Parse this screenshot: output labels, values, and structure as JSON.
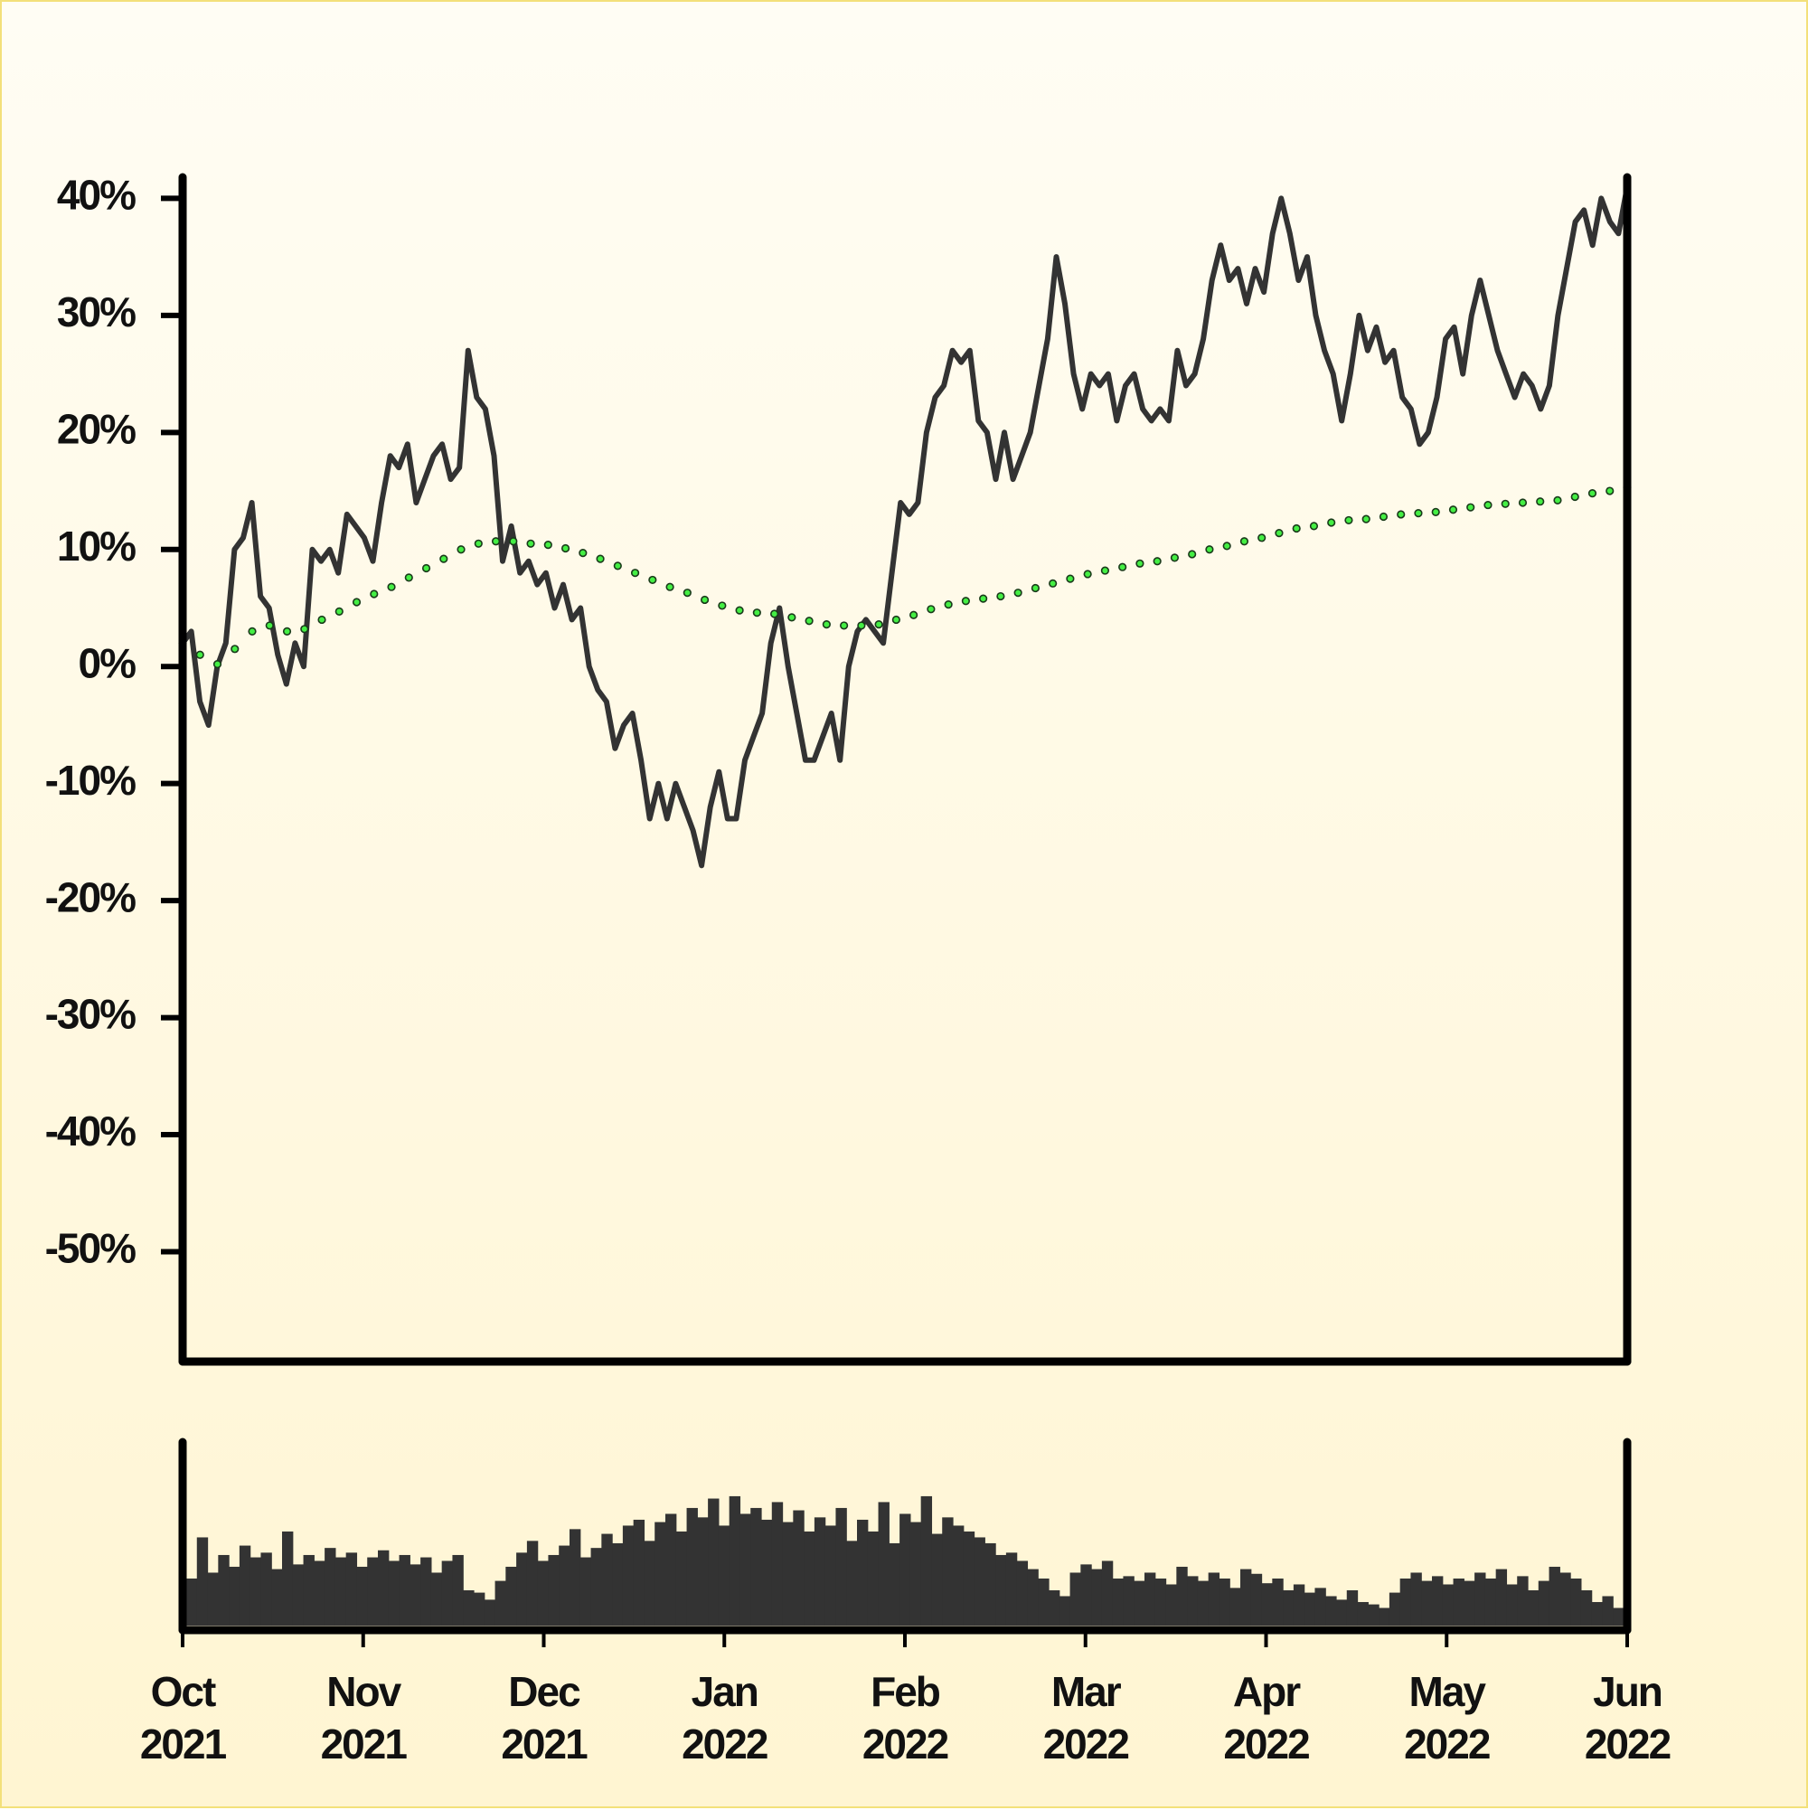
{
  "chart_data": [
    {
      "type": "line",
      "xlim": [
        0,
        8
      ],
      "ylim": [
        -59,
        41.5
      ],
      "yticks": [
        {
          "value": 40,
          "label": "40%"
        },
        {
          "value": 30,
          "label": "30%"
        },
        {
          "value": 20,
          "label": "20%"
        },
        {
          "value": 10,
          "label": "10%"
        },
        {
          "value": 0,
          "label": "0%"
        },
        {
          "value": -10,
          "label": "-10%"
        },
        {
          "value": -20,
          "label": "-20%"
        },
        {
          "value": -30,
          "label": "-30%"
        },
        {
          "value": -40,
          "label": "-40%"
        },
        {
          "value": -50,
          "label": "-50%"
        }
      ],
      "series": [
        {
          "color": "#333333",
          "style": "line",
          "values": [
            2,
            3,
            -3,
            -5,
            0,
            2,
            10,
            11,
            14,
            6,
            5,
            1,
            -1.5,
            2,
            0,
            10,
            9,
            10,
            8,
            13,
            12,
            11,
            9,
            14,
            18,
            17,
            19,
            14,
            16,
            18,
            19,
            16,
            17,
            27,
            23,
            22,
            18,
            9,
            12,
            8,
            9,
            7,
            8,
            5,
            7,
            4,
            5,
            0,
            -2,
            -3,
            -7,
            -5,
            -4,
            -8,
            -13,
            -10,
            -13,
            -10,
            -12,
            -14,
            -17,
            -12,
            -9,
            -13,
            -13,
            -8,
            -6,
            -4,
            2,
            5,
            0,
            -4,
            -8,
            -8,
            -6,
            -4,
            -8,
            0,
            3,
            4,
            3,
            2,
            8,
            14,
            13,
            14,
            20,
            23,
            24,
            27,
            26,
            27,
            21,
            20,
            16,
            20,
            16,
            18,
            20,
            24,
            28,
            35,
            31,
            25,
            22,
            25,
            24,
            25,
            21,
            24,
            25,
            22,
            21,
            22,
            21,
            27,
            24,
            25,
            28,
            33,
            36,
            33,
            34,
            31,
            34,
            32,
            37,
            40,
            37,
            33,
            35,
            30,
            27,
            25,
            21,
            25,
            30,
            27,
            29,
            26,
            27,
            23,
            22,
            19,
            20,
            23,
            28,
            29,
            25,
            30,
            33,
            30,
            27,
            25,
            23,
            25,
            24,
            22,
            24,
            30,
            34,
            38,
            39,
            36,
            40,
            38,
            37,
            41
          ]
        },
        {
          "color": "#44ee44",
          "style": "dots",
          "values": [
            2.0,
            1.0,
            0.2,
            1.5,
            3.0,
            3.5,
            3.0,
            3.2,
            4.0,
            4.7,
            5.5,
            6.2,
            6.8,
            7.6,
            8.4,
            9.2,
            10.0,
            10.5,
            10.7,
            10.7,
            10.5,
            10.4,
            10.1,
            9.7,
            9.2,
            8.6,
            8.0,
            7.4,
            6.8,
            6.3,
            5.7,
            5.2,
            4.8,
            4.6,
            4.5,
            4.2,
            3.9,
            3.6,
            3.5,
            3.5,
            3.6,
            4.0,
            4.4,
            4.9,
            5.3,
            5.6,
            5.8,
            6.0,
            6.3,
            6.7,
            7.1,
            7.5,
            7.9,
            8.2,
            8.5,
            8.8,
            9.0,
            9.3,
            9.6,
            10.0,
            10.3,
            10.7,
            11.0,
            11.4,
            11.8,
            12.0,
            12.3,
            12.5,
            12.6,
            12.8,
            13.0,
            13.1,
            13.2,
            13.4,
            13.6,
            13.8,
            13.9,
            14.0,
            14.1,
            14.2,
            14.5,
            14.8,
            15.0,
            15.3
          ]
        }
      ]
    },
    {
      "type": "bar",
      "color": "#333333",
      "xlim": [
        0,
        8
      ],
      "ylim": [
        0,
        153
      ],
      "xticks": [
        {
          "value": 0,
          "label": "Oct\n2021"
        },
        {
          "value": 1,
          "label": "Nov\n2021"
        },
        {
          "value": 2,
          "label": "Dec\n2021"
        },
        {
          "value": 3,
          "label": "Jan\n2022"
        },
        {
          "value": 4,
          "label": "Feb\n2022"
        },
        {
          "value": 5,
          "label": "Mar\n2022"
        },
        {
          "value": 6,
          "label": "Apr\n2022"
        },
        {
          "value": 7,
          "label": "May\n2022"
        },
        {
          "value": 8,
          "label": "Jun\n2022"
        }
      ],
      "values": [
        40,
        75,
        45,
        60,
        50,
        68,
        58,
        62,
        48,
        80,
        52,
        60,
        55,
        66,
        58,
        62,
        50,
        58,
        64,
        55,
        60,
        52,
        58,
        45,
        55,
        60,
        30,
        28,
        22,
        38,
        50,
        62,
        72,
        55,
        60,
        68,
        82,
        58,
        66,
        78,
        70,
        85,
        90,
        72,
        88,
        95,
        80,
        100,
        92,
        108,
        85,
        110,
        95,
        100,
        90,
        105,
        88,
        98,
        80,
        92,
        85,
        100,
        72,
        90,
        80,
        105,
        70,
        95,
        88,
        110,
        78,
        92,
        85,
        80,
        75,
        70,
        60,
        62,
        55,
        48,
        40,
        30,
        25,
        45,
        52,
        48,
        55,
        40,
        42,
        38,
        45,
        40,
        35,
        50,
        42,
        38,
        45,
        40,
        32,
        48,
        44,
        36,
        40,
        30,
        35,
        28,
        32,
        25,
        22,
        30,
        20,
        18,
        15,
        28,
        40,
        45,
        38,
        42,
        35,
        40,
        38,
        45,
        40,
        48,
        35,
        42,
        30,
        38,
        50,
        45,
        40,
        30,
        20,
        25,
        15
      ]
    }
  ]
}
